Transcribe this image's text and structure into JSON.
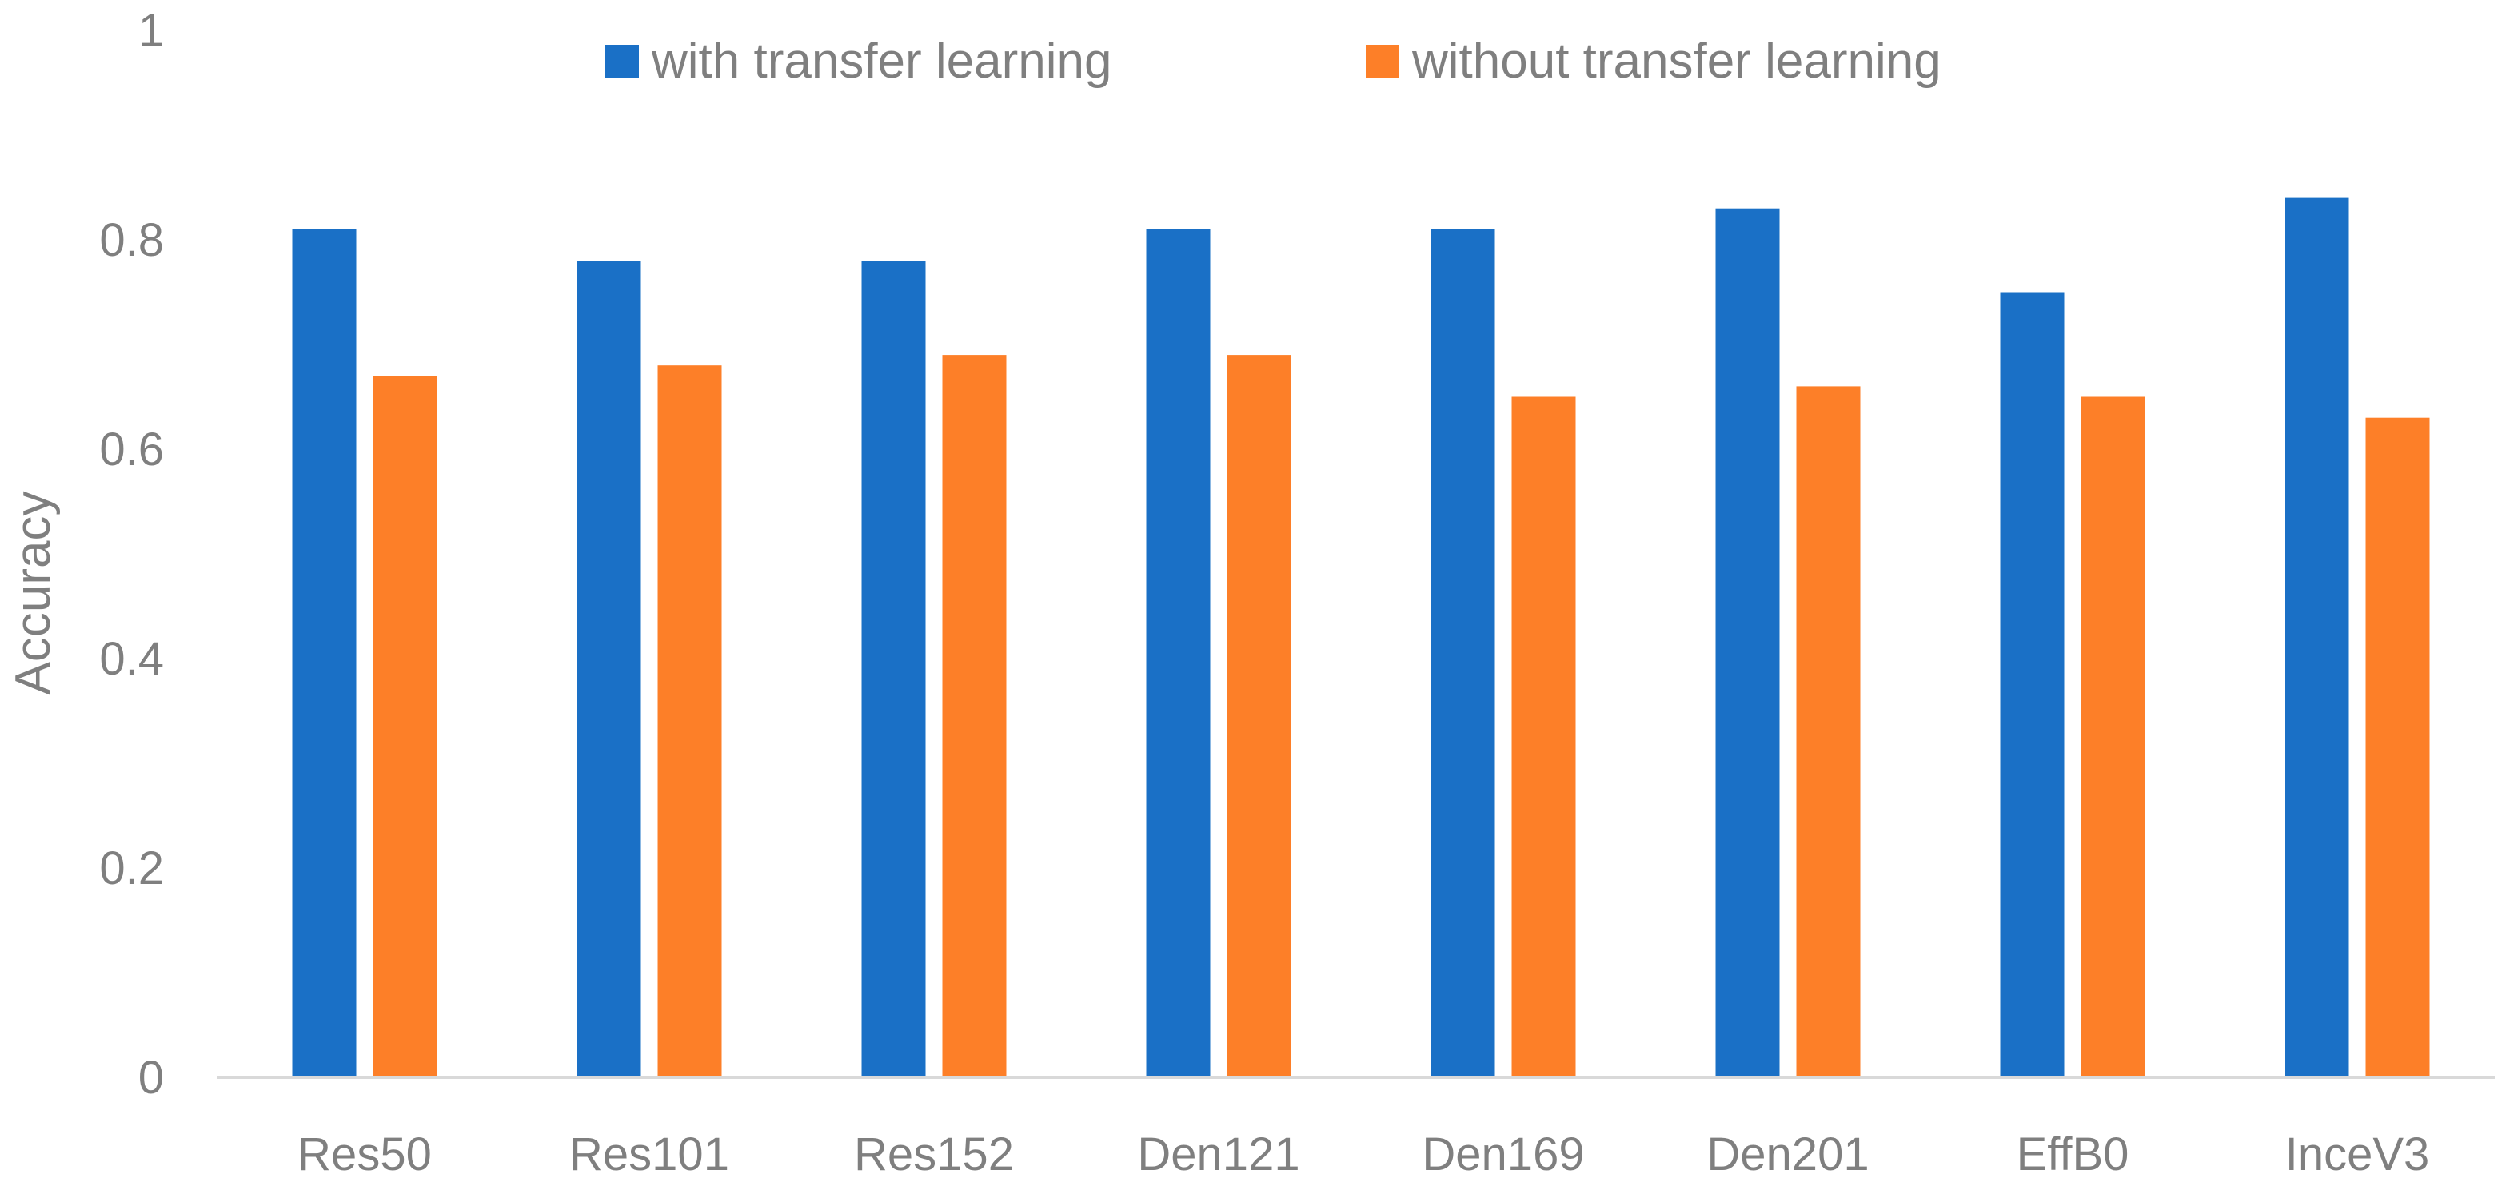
{
  "chart_data": {
    "type": "bar",
    "categories": [
      "Res50",
      "Res101",
      "Res152",
      "Den121",
      "Den169",
      "Den201",
      "EffB0",
      "InceV3"
    ],
    "series": [
      {
        "name": "with transfer learning",
        "color": "#1a70c6",
        "values": [
          0.81,
          0.78,
          0.78,
          0.81,
          0.81,
          0.83,
          0.75,
          0.84
        ]
      },
      {
        "name": "without transfer learning",
        "color": "#fd7f28",
        "values": [
          0.67,
          0.68,
          0.69,
          0.69,
          0.65,
          0.66,
          0.65,
          0.63
        ]
      }
    ],
    "title": "",
    "xlabel": "",
    "ylabel": "Accuracy",
    "ylim": [
      0,
      1
    ],
    "yticks": [
      "0",
      "0.2",
      "0.4",
      "0.6",
      "0.8",
      "1"
    ],
    "grid": false,
    "legend_position": "top"
  }
}
